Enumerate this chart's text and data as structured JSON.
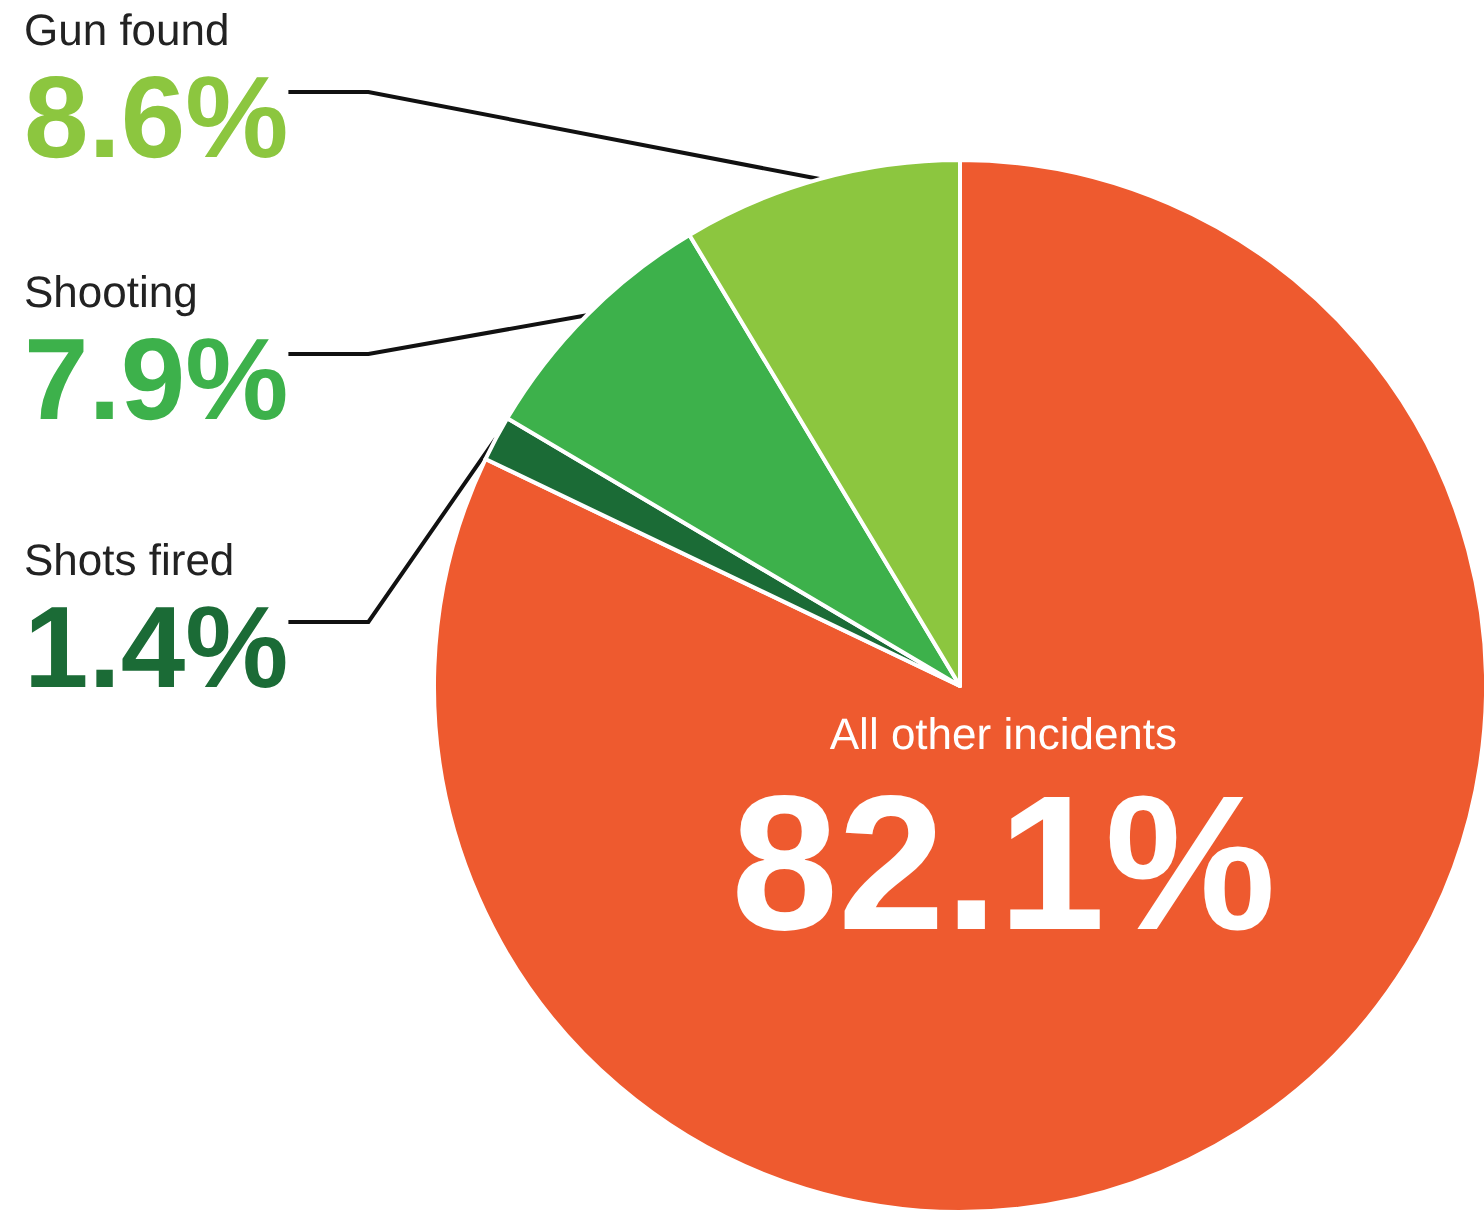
{
  "chart_data": {
    "type": "pie",
    "categories": [
      "All other incidents",
      "Shots fired",
      "Shooting",
      "Gun found"
    ],
    "values": [
      82.1,
      1.4,
      7.9,
      8.6
    ],
    "colors": [
      "#ee5a2f",
      "#1b6b36",
      "#3db14b",
      "#8cc63f"
    ],
    "value_labels": [
      "82.1%",
      "1.4%",
      "7.9%",
      "8.6%"
    ]
  }
}
